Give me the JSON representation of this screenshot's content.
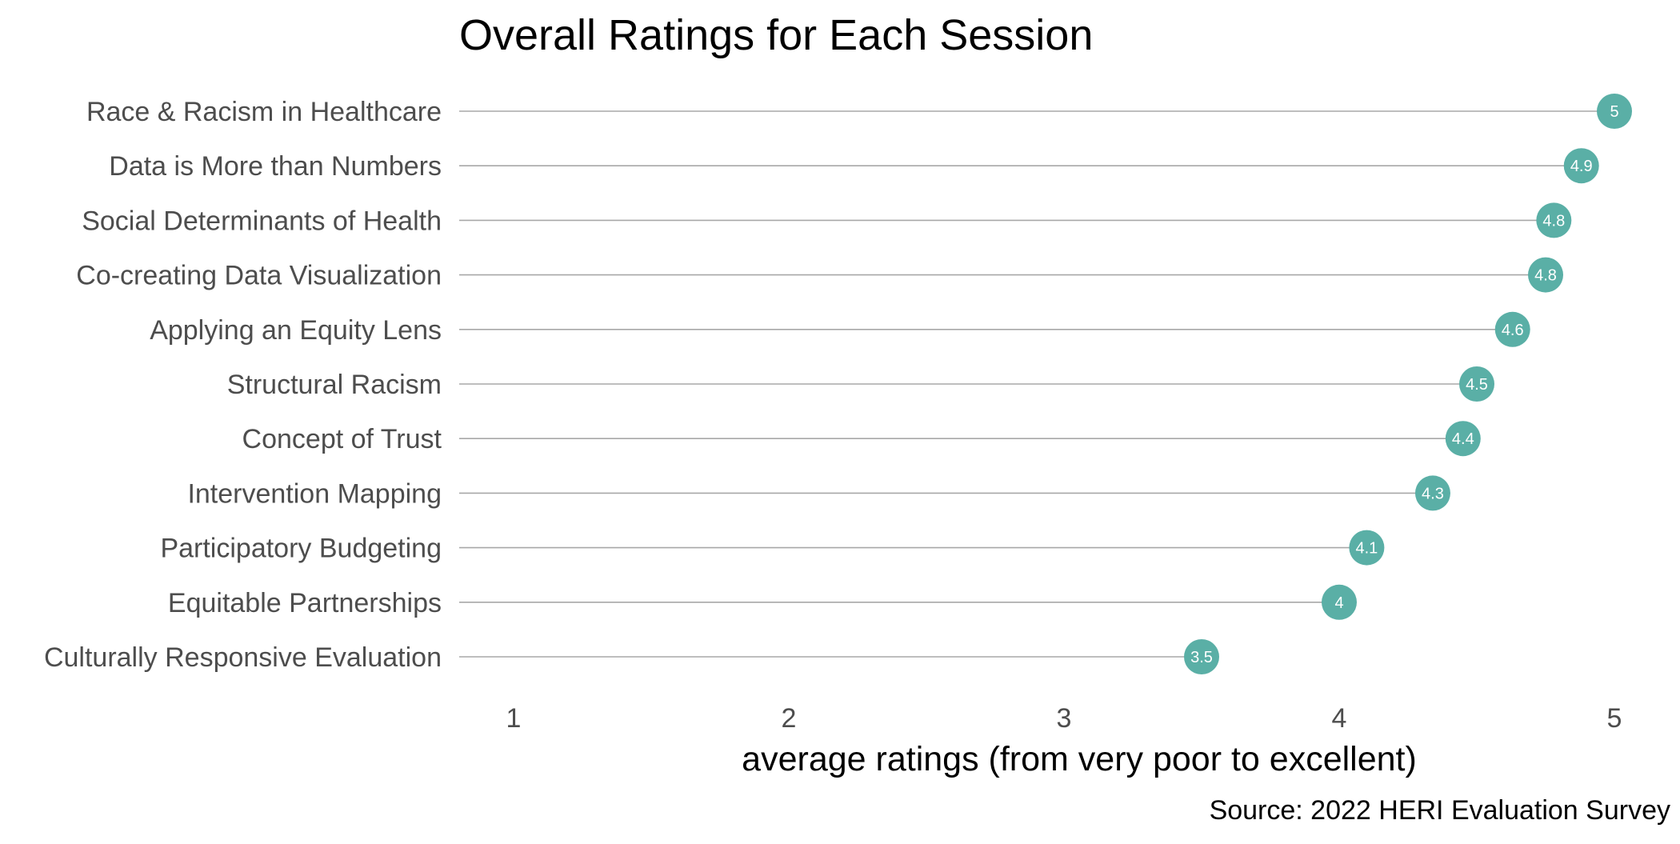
{
  "chart_data": {
    "type": "lollipop",
    "title": "Overall Ratings for Each Session",
    "xlabel": "average ratings (from very poor to excellent)",
    "caption": "Source: 2022 HERI Evaluation Survey",
    "xlim": [
      1,
      5
    ],
    "xticks": [
      "1",
      "2",
      "3",
      "4",
      "5"
    ],
    "grid": false,
    "legend": "none",
    "dot_color": "#5aafa6",
    "stem_color": "#a8a8a8",
    "categories": [
      "Race & Racism in Healthcare",
      "Data is More than Numbers",
      "Social Determinants of Health",
      "Co-creating Data Visualization",
      "Applying an Equity Lens",
      "Structural Racism",
      "Concept of Trust",
      "Intervention Mapping",
      "Participatory Budgeting",
      "Equitable Partnerships",
      "Culturally Responsive Evaluation"
    ],
    "values": [
      5.0,
      4.88,
      4.78,
      4.75,
      4.63,
      4.5,
      4.45,
      4.34,
      4.1,
      4.0,
      3.5
    ],
    "value_labels": [
      "5",
      "4.9",
      "4.8",
      "4.8",
      "4.6",
      "4.5",
      "4.4",
      "4.3",
      "4.1",
      "4",
      "3.5"
    ]
  }
}
